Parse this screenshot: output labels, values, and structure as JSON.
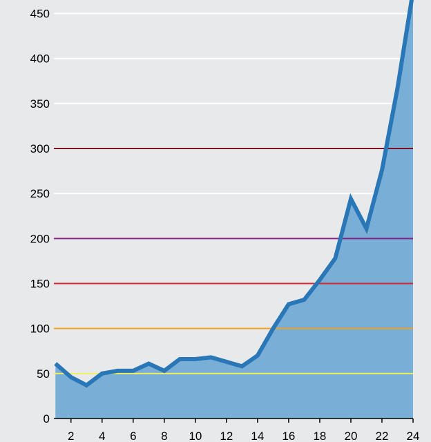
{
  "chart_data": {
    "type": "area",
    "title": "",
    "xlabel": "",
    "ylabel": "",
    "x": [
      1,
      2,
      3,
      4,
      5,
      6,
      7,
      8,
      9,
      10,
      11,
      12,
      13,
      14,
      15,
      16,
      17,
      18,
      19,
      20,
      21,
      22,
      23,
      24
    ],
    "series": [
      {
        "values": [
          61,
          46,
          37,
          50,
          53,
          53,
          61,
          53,
          66,
          66,
          68,
          63,
          58,
          70,
          100,
          127,
          132,
          154,
          178,
          244,
          211,
          276,
          367,
          475
        ]
      }
    ],
    "xlim": [
      1,
      24
    ],
    "ylim": [
      0,
      465
    ],
    "x_ticks": [
      2,
      4,
      6,
      8,
      10,
      12,
      14,
      16,
      18,
      20,
      22,
      24
    ],
    "y_ticks": [
      0,
      50,
      100,
      150,
      200,
      250,
      300,
      350,
      400,
      450
    ],
    "grid": true,
    "threshold_lines": [
      {
        "value": 50,
        "color": "#f2ee5c"
      },
      {
        "value": 100,
        "color": "#f0a01e"
      },
      {
        "value": 150,
        "color": "#d8252c"
      },
      {
        "value": 200,
        "color": "#8a1f86"
      },
      {
        "value": 300,
        "color": "#7e1022"
      }
    ],
    "colors": {
      "background": "#e8e9eb",
      "area_fill": "#79aed6",
      "line": "#2a77b8",
      "gridline": "#ffffff",
      "axis": "#000000"
    }
  }
}
